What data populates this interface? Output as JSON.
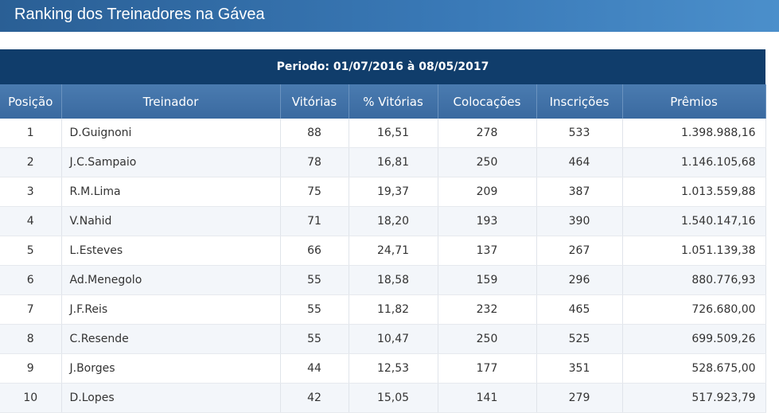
{
  "header": {
    "title": "Ranking dos Treinadores na Gávea"
  },
  "table": {
    "period": "Periodo: 01/07/2016 à 08/05/2017",
    "columns": [
      "Posição",
      "Treinador",
      "Vitórias",
      "% Vitórias",
      "Colocações",
      "Inscrições",
      "Prêmios"
    ],
    "rows": [
      [
        "1",
        "D.Guignoni",
        "88",
        "16,51",
        "278",
        "533",
        "1.398.988,16"
      ],
      [
        "2",
        "J.C.Sampaio",
        "78",
        "16,81",
        "250",
        "464",
        "1.146.105,68"
      ],
      [
        "3",
        "R.M.Lima",
        "75",
        "19,37",
        "209",
        "387",
        "1.013.559,88"
      ],
      [
        "4",
        "V.Nahid",
        "71",
        "18,20",
        "193",
        "390",
        "1.540.147,16"
      ],
      [
        "5",
        "L.Esteves",
        "66",
        "24,71",
        "137",
        "267",
        "1.051.139,38"
      ],
      [
        "6",
        "Ad.Menegolo",
        "55",
        "18,58",
        "159",
        "296",
        "880.776,93"
      ],
      [
        "7",
        "J.F.Reis",
        "55",
        "11,82",
        "232",
        "465",
        "726.680,00"
      ],
      [
        "8",
        "C.Resende",
        "55",
        "10,47",
        "250",
        "525",
        "699.509,26"
      ],
      [
        "9",
        "J.Borges",
        "44",
        "12,53",
        "177",
        "351",
        "528.675,00"
      ],
      [
        "10",
        "D.Lopes",
        "42",
        "15,05",
        "141",
        "279",
        "517.923,79"
      ]
    ]
  }
}
